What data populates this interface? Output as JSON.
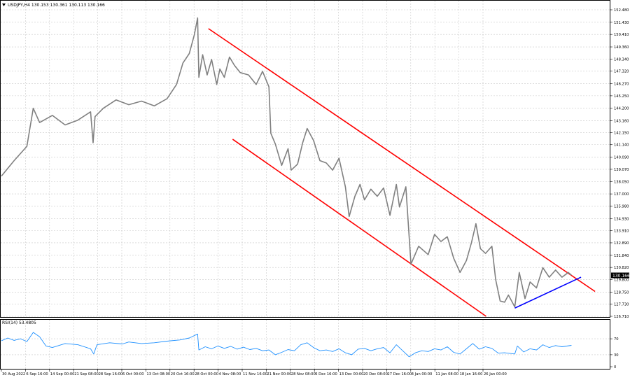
{
  "window": {
    "symbol_header": "USDJPY,H4  130.153 130.361 130.113 130.166",
    "rsi_header": "RSI(14) 53.4805",
    "current_price_tag": "130.166"
  },
  "colors": {
    "background": "#ffffff",
    "price_line": "#808080",
    "channel_lines": "#ff0000",
    "support_line": "#0000ff",
    "rsi_line": "#1e90ff",
    "grid": "#c8c8c8",
    "frame": "#000000"
  },
  "chart_data": [
    {
      "type": "line",
      "panel": "price",
      "y_ticks": [
        "152.480",
        "151.430",
        "150.410",
        "149.360",
        "148.340",
        "147.320",
        "146.270",
        "145.250",
        "144.200",
        "143.160",
        "142.150",
        "141.140",
        "140.090",
        "139.070",
        "138.050",
        "137.000",
        "135.980",
        "134.930",
        "133.910",
        "132.890",
        "131.840",
        "130.820",
        "129.800",
        "128.750",
        "127.730",
        "126.710"
      ],
      "y_range": [
        126.71,
        152.48
      ],
      "x_labels": [
        "30 Aug 2022",
        "6 Sep 16:00",
        "14 Sep 00:00",
        "21 Sep 08:00",
        "28 Sep 16:00",
        "6 Oct 00:00",
        "13 Oct 08:00",
        "20 Oct 16:00",
        "28 Oct 00:00",
        "4 Nov 08:00",
        "11 Nov 16:00",
        "21 Nov 00:00",
        "28 Nov 08:00",
        "5 Dec 16:00",
        "13 Dec 00:00",
        "20 Dec 08:00",
        "27 Dec 16:00",
        "4 Jan 00:00",
        "11 Jan 08:00",
        "18 Jan 16:00",
        "26 Jan 00:00"
      ],
      "series": [
        {
          "values": [
            [
              0,
              138.5
            ],
            [
              2,
              139.8
            ],
            [
              4,
              141.0
            ],
            [
              5,
              144.2
            ],
            [
              6,
              143.0
            ],
            [
              8,
              143.6
            ],
            [
              10,
              142.8
            ],
            [
              12,
              143.2
            ],
            [
              14,
              143.9
            ],
            [
              14.4,
              141.3
            ],
            [
              14.7,
              143.5
            ],
            [
              16,
              144.2
            ],
            [
              18,
              144.9
            ],
            [
              20,
              144.5
            ],
            [
              22,
              144.8
            ],
            [
              24,
              144.4
            ],
            [
              26,
              145.0
            ],
            [
              27.5,
              146.2
            ],
            [
              28.5,
              148.0
            ],
            [
              29.5,
              148.8
            ],
            [
              30.3,
              150.4
            ],
            [
              30.8,
              151.8
            ],
            [
              31.0,
              146.8
            ],
            [
              31.6,
              148.7
            ],
            [
              32.3,
              147.0
            ],
            [
              33,
              148.3
            ],
            [
              33.8,
              146.2
            ],
            [
              34.3,
              147.5
            ],
            [
              35,
              146.8
            ],
            [
              35.8,
              148.5
            ],
            [
              36.6,
              147.8
            ],
            [
              37.5,
              147.2
            ],
            [
              38.8,
              147.0
            ],
            [
              40,
              146.2
            ],
            [
              41,
              147.3
            ],
            [
              42,
              146.0
            ],
            [
              42.3,
              142.1
            ],
            [
              43,
              141.2
            ],
            [
              44,
              139.4
            ],
            [
              45,
              140.8
            ],
            [
              45.5,
              139.0
            ],
            [
              46.5,
              139.5
            ],
            [
              47.3,
              141.3
            ],
            [
              48,
              142.5
            ],
            [
              49,
              141.5
            ],
            [
              50,
              139.8
            ],
            [
              51,
              139.6
            ],
            [
              52,
              139.0
            ],
            [
              53,
              140.0
            ],
            [
              54,
              137.6
            ],
            [
              54.6,
              135.1
            ],
            [
              55.5,
              136.8
            ],
            [
              56.3,
              137.8
            ],
            [
              57,
              136.5
            ],
            [
              58,
              137.4
            ],
            [
              59,
              136.8
            ],
            [
              60,
              137.5
            ],
            [
              61,
              135.2
            ],
            [
              62,
              137.8
            ],
            [
              62.5,
              135.9
            ],
            [
              63.5,
              137.6
            ],
            [
              64.3,
              131.1
            ],
            [
              65.5,
              132.6
            ],
            [
              67,
              131.9
            ],
            [
              68,
              133.6
            ],
            [
              69,
              133.0
            ],
            [
              70,
              133.4
            ],
            [
              71,
              131.6
            ],
            [
              72,
              130.4
            ],
            [
              73,
              131.4
            ],
            [
              73.8,
              132.9
            ],
            [
              74.5,
              134.5
            ],
            [
              75.2,
              132.4
            ],
            [
              76,
              132.0
            ],
            [
              77,
              132.6
            ],
            [
              77.6,
              129.8
            ],
            [
              78.3,
              128.0
            ],
            [
              79,
              127.9
            ],
            [
              79.6,
              128.5
            ],
            [
              80.1,
              128.0
            ],
            [
              80.6,
              127.5
            ],
            [
              81.3,
              130.4
            ],
            [
              82.2,
              128.2
            ],
            [
              83,
              129.6
            ],
            [
              84,
              129.1
            ],
            [
              85,
              130.8
            ],
            [
              86,
              130.0
            ],
            [
              87,
              130.6
            ],
            [
              88,
              130.0
            ],
            [
              89,
              130.4
            ],
            [
              89.5,
              130.17
            ]
          ]
        }
      ],
      "overlays": [
        {
          "name": "upper-channel",
          "color": "#ff0000",
          "points": [
            [
              32.5,
              150.9
            ],
            [
              93.2,
              128.8
            ]
          ]
        },
        {
          "name": "lower-channel",
          "color": "#ff0000",
          "points": [
            [
              36.3,
              141.6
            ],
            [
              76.1,
              126.71
            ]
          ]
        },
        {
          "name": "support-line",
          "color": "#0000ff",
          "points": [
            [
              80.6,
              127.4
            ],
            [
              91,
              130.0
            ]
          ]
        }
      ]
    },
    {
      "type": "line",
      "panel": "rsi",
      "y_ticks": [
        "70",
        "30",
        "0"
      ],
      "y_range": [
        0,
        100
      ],
      "series": [
        {
          "values": [
            [
              0,
              65
            ],
            [
              1,
              72
            ],
            [
              2,
              66
            ],
            [
              3,
              70
            ],
            [
              4,
              63
            ],
            [
              5,
              86
            ],
            [
              6,
              75
            ],
            [
              7,
              52
            ],
            [
              8,
              48
            ],
            [
              10,
              58
            ],
            [
              12,
              55
            ],
            [
              14,
              45
            ],
            [
              14.5,
              32
            ],
            [
              15,
              55
            ],
            [
              17,
              60
            ],
            [
              19,
              57
            ],
            [
              20,
              62
            ],
            [
              22,
              58
            ],
            [
              24,
              60
            ],
            [
              26,
              64
            ],
            [
              28,
              67
            ],
            [
              29.5,
              72
            ],
            [
              30.8,
              82
            ],
            [
              31,
              42
            ],
            [
              32,
              50
            ],
            [
              33,
              45
            ],
            [
              34,
              52
            ],
            [
              35,
              46
            ],
            [
              36,
              51
            ],
            [
              37,
              44
            ],
            [
              38,
              49
            ],
            [
              39,
              43
            ],
            [
              40,
              46
            ],
            [
              41,
              40
            ],
            [
              42,
              42
            ],
            [
              43,
              30
            ],
            [
              44,
              36
            ],
            [
              45,
              43
            ],
            [
              46,
              40
            ],
            [
              47,
              55
            ],
            [
              48,
              60
            ],
            [
              49,
              48
            ],
            [
              50,
              40
            ],
            [
              51,
              42
            ],
            [
              52,
              38
            ],
            [
              53,
              45
            ],
            [
              54,
              35
            ],
            [
              55,
              30
            ],
            [
              56,
              44
            ],
            [
              57,
              46
            ],
            [
              58,
              40
            ],
            [
              59,
              45
            ],
            [
              60,
              48
            ],
            [
              61,
              35
            ],
            [
              62,
              55
            ],
            [
              63,
              40
            ],
            [
              64,
              25
            ],
            [
              65,
              35
            ],
            [
              66,
              40
            ],
            [
              67,
              38
            ],
            [
              68,
              45
            ],
            [
              69,
              42
            ],
            [
              70,
              50
            ],
            [
              71,
              36
            ],
            [
              72,
              32
            ],
            [
              73,
              45
            ],
            [
              74,
              58
            ],
            [
              75,
              44
            ],
            [
              76,
              50
            ],
            [
              77,
              46
            ],
            [
              78,
              34
            ],
            [
              79,
              35
            ],
            [
              80,
              33
            ],
            [
              80.6,
              32
            ],
            [
              81,
              52
            ],
            [
              82,
              37
            ],
            [
              83,
              45
            ],
            [
              84,
              42
            ],
            [
              85,
              55
            ],
            [
              86,
              48
            ],
            [
              87,
              53
            ],
            [
              88,
              50
            ],
            [
              89.5,
              53.5
            ]
          ]
        }
      ]
    }
  ]
}
